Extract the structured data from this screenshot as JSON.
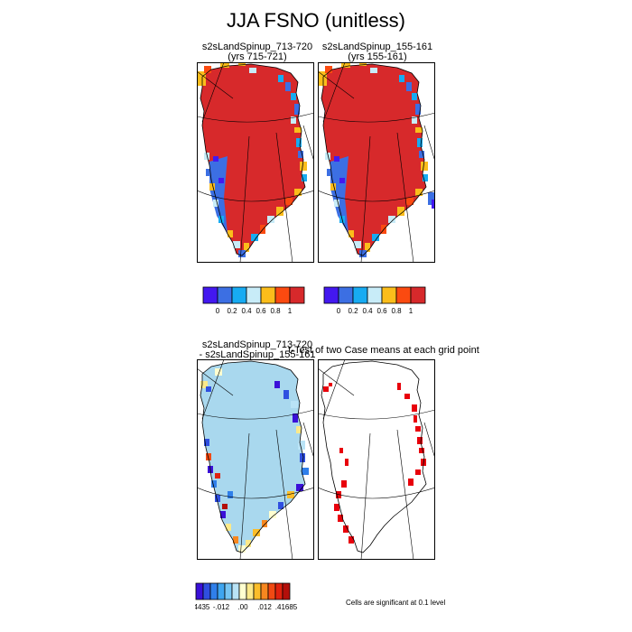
{
  "title": "JJA FSNO (unitless)",
  "panels": {
    "top_left": {
      "title_line1": "s2sLandSpinup_713-720",
      "title_line2": "(yrs 715-721)"
    },
    "top_right": {
      "title_line1": "s2sLandSpinup_155-161",
      "title_line2": "(yrs 155-161)"
    },
    "bottom_left": {
      "title_line1": "s2sLandSpinup_713-720",
      "title_line2": "- s2sLandSpinup_155-161"
    },
    "bottom_right": {
      "title_line1": "t-Test of two Case means at each grid point"
    }
  },
  "footnote": "Cells are significant at 0.1 level",
  "colors": {
    "ice": "#d7292b",
    "ice_diff": "#a9d8ee",
    "significant": "#e8000b",
    "abs_colorbar": [
      "#4318f0",
      "#3c6fe3",
      "#17abf2",
      "#c8ecf8",
      "#fbbd1b",
      "#fb4a10",
      "#d7292b"
    ],
    "diff_colorbar": [
      "#3a10d8",
      "#2f4fe0",
      "#2f7fea",
      "#3ea5f0",
      "#76c5f3",
      "#b9e3f6",
      "#ffffd0",
      "#fbe98a",
      "#fbbd2a",
      "#f7871f",
      "#f14a13",
      "#e0220e",
      "#b30f0a"
    ]
  },
  "chart_data": [
    {
      "type": "heatmap",
      "panel": "top_left",
      "title": "s2sLandSpinup_713-720 (yrs 715-721)",
      "colorbar_ticks": [
        "0",
        "0.2",
        "0.4",
        "0.6",
        "0.8",
        "1"
      ],
      "range": [
        0,
        1
      ]
    },
    {
      "type": "heatmap",
      "panel": "top_right",
      "title": "s2sLandSpinup_155-161 (yrs 155-161)",
      "colorbar_ticks": [
        "0",
        "0.2",
        "0.4",
        "0.6",
        "0.8",
        "1"
      ],
      "range": [
        0,
        1
      ]
    },
    {
      "type": "heatmap",
      "panel": "bottom_left",
      "title": "s2sLandSpinup_713-720 - s2sLandSpinup_155-161",
      "colorbar_ticks": [
        "-.4435",
        "-.012",
        ".00",
        ".012",
        ".41685"
      ],
      "range": [
        -0.4435,
        0.41685
      ]
    },
    {
      "type": "heatmap",
      "panel": "bottom_right",
      "title": "t-Test of two Case means at each grid point",
      "note": "Cells are significant at 0.1 level"
    }
  ]
}
